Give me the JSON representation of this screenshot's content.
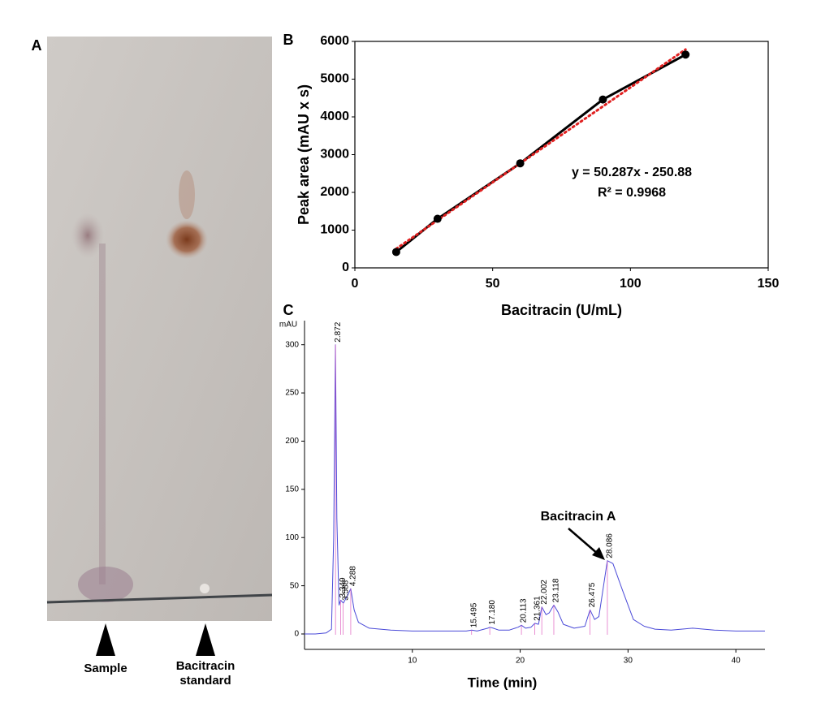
{
  "panel_labels": [
    "A",
    "B",
    "C"
  ],
  "tlc": {
    "labels": [
      "Sample",
      "Bacitracin standard"
    ]
  },
  "chart_data": [
    {
      "type": "line",
      "x_label": "Bacitracin (U/mL)",
      "y_label": "Peak area (mAU x s)",
      "x": [
        15,
        30,
        60,
        90,
        120
      ],
      "series": [
        {
          "name": "Peak area",
          "color": "#000000",
          "values": [
            420,
            1300,
            2770,
            4460,
            5650
          ]
        }
      ],
      "markers": true,
      "trendline": true,
      "trendline_color": "#e02020",
      "annotations": [
        "y = 50.287x - 250.88",
        "R² = 0.9968"
      ],
      "xlim": [
        0,
        150
      ],
      "xticks": [
        0,
        50,
        100,
        150
      ],
      "ylim": [
        0,
        6000
      ],
      "yticks": [
        0,
        1000,
        2000,
        3000,
        4000,
        5000,
        6000
      ]
    },
    {
      "type": "line",
      "x_label": "Time (min)",
      "y_label": "mAU",
      "x": [
        0,
        1,
        2,
        2.5,
        2.7,
        2.872,
        3.0,
        3.2,
        3.35,
        3.6,
        4.0,
        4.288,
        4.6,
        5,
        6,
        8,
        10,
        12,
        14,
        15,
        15.5,
        16,
        17,
        17.18,
        17.5,
        18,
        19,
        19.8,
        20.113,
        20.5,
        21,
        21.361,
        21.7,
        22.002,
        22.4,
        22.7,
        23.118,
        23.5,
        24,
        25,
        26,
        26.475,
        26.9,
        27.3,
        28.086,
        28.6,
        29.5,
        30.5,
        31.5,
        32.5,
        34,
        36,
        38,
        40,
        42,
        42.7
      ],
      "series": [
        {
          "name": "mAU",
          "color": "#4a4ad8",
          "values": [
            0,
            0,
            1,
            5,
            100,
            300,
            120,
            30,
            35,
            32,
            40,
            47,
            25,
            12,
            6,
            4,
            3,
            3,
            3,
            3,
            4,
            3,
            6,
            7,
            6,
            4,
            4,
            7,
            9,
            6,
            7,
            11,
            10,
            28,
            20,
            22,
            30,
            23,
            10,
            6,
            8,
            25,
            15,
            18,
            76,
            73,
            45,
            15,
            8,
            5,
            4,
            6,
            4,
            3,
            3,
            3
          ]
        }
      ],
      "peak_labels": [
        2.872,
        3.349,
        3.588,
        4.288,
        15.495,
        {
          "value": 17.18,
          "label": "17.180"
        },
        20.113,
        21.361,
        22.002,
        23.118,
        26.475,
        28.086
      ],
      "annotation": "Bacitracin A",
      "xlim": [
        0,
        42.7
      ],
      "xticks": [
        10,
        20,
        30,
        40
      ],
      "ylim": [
        -16,
        325
      ],
      "yticks": [
        0,
        50,
        100,
        150,
        200,
        250,
        300
      ]
    }
  ]
}
